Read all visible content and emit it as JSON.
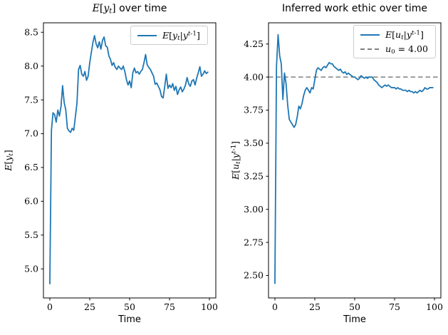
{
  "figure": {
    "background": "#ffffff",
    "axis_color": "#000000",
    "series_blue": "#1f77b4",
    "ref_gray": "#808080"
  },
  "chart_data": [
    {
      "type": "line",
      "title": [
        {
          "text": "E[y_t]",
          "math": true
        },
        {
          "text": " over time",
          "math": false
        }
      ],
      "xlabel": "Time",
      "ylabel": "E[y_t]",
      "xlim": [
        -4,
        104
      ],
      "ylim": [
        4.57,
        8.64
      ],
      "xticks": [
        "0",
        "25",
        "50",
        "75",
        "100"
      ],
      "yticks": [
        "5.0",
        "5.5",
        "6.0",
        "6.5",
        "7.0",
        "7.5",
        "8.0",
        "8.5"
      ],
      "grid": false,
      "legend": {
        "position": "upper right",
        "entries": [
          {
            "label": "E[y_t|y^{t-1}]",
            "color": "#1f77b4",
            "dash": false
          }
        ]
      },
      "series": [
        {
          "name": "E[y_t|y^{t-1}]",
          "color": "#1f77b4",
          "x_note": "t = sample index 0..99",
          "y": [
            4.78,
            7.05,
            7.31,
            7.28,
            7.17,
            7.35,
            7.26,
            7.4,
            7.71,
            7.46,
            7.35,
            7.08,
            7.04,
            7.02,
            7.08,
            7.05,
            7.25,
            7.45,
            7.95,
            8.01,
            7.88,
            7.85,
            7.92,
            7.79,
            7.85,
            8.05,
            8.2,
            8.35,
            8.45,
            8.33,
            8.27,
            8.36,
            8.25,
            8.38,
            8.43,
            8.3,
            8.28,
            8.15,
            8.1,
            8.01,
            8.05,
            7.98,
            7.95,
            8.0,
            7.97,
            7.95,
            8.0,
            7.92,
            7.8,
            7.72,
            7.78,
            7.68,
            7.9,
            7.97,
            7.9,
            7.92,
            7.88,
            7.92,
            7.95,
            8.05,
            8.17,
            8.02,
            7.98,
            7.95,
            7.9,
            7.85,
            7.73,
            7.75,
            7.7,
            7.65,
            7.55,
            7.53,
            7.7,
            7.88,
            7.67,
            7.72,
            7.68,
            7.74,
            7.64,
            7.7,
            7.58,
            7.65,
            7.69,
            7.62,
            7.66,
            7.72,
            7.83,
            7.74,
            7.7,
            7.78,
            7.8,
            7.72,
            7.82,
            7.9,
            7.99,
            7.85,
            7.88,
            7.93,
            7.89,
            7.91
          ]
        }
      ]
    },
    {
      "type": "line",
      "title": [
        {
          "text": "Inferred work ethic over time",
          "math": false
        }
      ],
      "xlabel": "Time",
      "ylabel": "E[u_t|y^{t-1}]",
      "xlim": [
        -4,
        104
      ],
      "ylim": [
        2.33,
        4.41
      ],
      "xticks": [
        "0",
        "25",
        "50",
        "75",
        "100"
      ],
      "yticks": [
        "2.50",
        "2.75",
        "3.00",
        "3.25",
        "3.50",
        "3.75",
        "4.00",
        "4.25"
      ],
      "grid": false,
      "refline": {
        "y": 4.0,
        "label": "u_0 = 4.00",
        "color": "#808080",
        "dash": true
      },
      "legend": {
        "position": "upper right",
        "entries": [
          {
            "label": "E[u_t|y^{t-1}]",
            "color": "#1f77b4",
            "dash": false
          },
          {
            "label": "u_0 = 4.00",
            "color": "#808080",
            "dash": true
          }
        ]
      },
      "series": [
        {
          "name": "E[u_t|y^{t-1}]",
          "color": "#1f77b4",
          "x_note": "t = sample index 0..99",
          "y": [
            2.44,
            4.08,
            4.32,
            4.16,
            4.1,
            3.83,
            4.03,
            3.95,
            3.79,
            3.68,
            3.66,
            3.64,
            3.62,
            3.64,
            3.7,
            3.78,
            3.76,
            3.8,
            3.86,
            3.9,
            3.92,
            3.9,
            3.88,
            3.92,
            3.91,
            3.98,
            4.05,
            4.07,
            4.06,
            4.05,
            4.07,
            4.08,
            4.07,
            4.09,
            4.11,
            4.1,
            4.1,
            4.08,
            4.07,
            4.06,
            4.05,
            4.06,
            4.04,
            4.03,
            4.04,
            4.02,
            4.03,
            4.02,
            4.01,
            4.0,
            4.0,
            3.99,
            3.98,
            3.99,
            4.01,
            4.0,
            3.99,
            4.0,
            3.99,
            4.0,
            4.0,
            4.0,
            3.98,
            3.97,
            3.96,
            3.94,
            3.93,
            3.92,
            3.93,
            3.94,
            3.93,
            3.94,
            3.93,
            3.92,
            3.92,
            3.92,
            3.91,
            3.92,
            3.91,
            3.91,
            3.9,
            3.9,
            3.9,
            3.89,
            3.9,
            3.89,
            3.89,
            3.88,
            3.89,
            3.88,
            3.89,
            3.9,
            3.89,
            3.9,
            3.92,
            3.91,
            3.91,
            3.92,
            3.92,
            3.92
          ]
        }
      ]
    }
  ]
}
